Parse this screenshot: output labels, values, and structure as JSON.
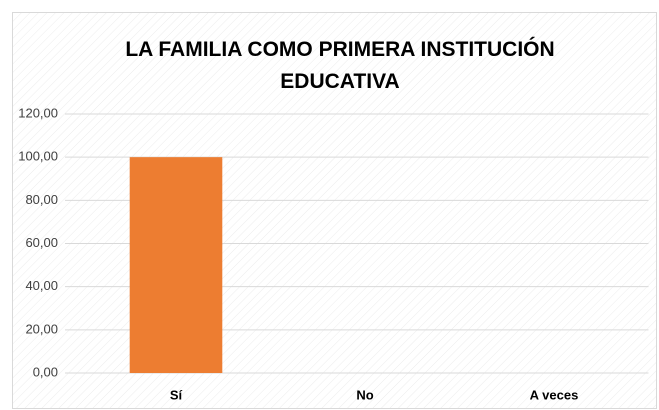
{
  "chart_data": {
    "type": "bar",
    "title": "LA FAMILIA COMO PRIMERA INSTITUCIÓN EDUCATIVA",
    "categories": [
      "Sí",
      "No",
      "A veces"
    ],
    "values": [
      100,
      0,
      0
    ],
    "color": "#ed7d31",
    "ylim": [
      0,
      120
    ],
    "yticks": [
      {
        "value": 0,
        "label": "0,00"
      },
      {
        "value": 20,
        "label": "20,00"
      },
      {
        "value": 40,
        "label": "40,00"
      },
      {
        "value": 60,
        "label": "60,00"
      },
      {
        "value": 80,
        "label": "80,00"
      },
      {
        "value": 100,
        "label": "100,00"
      },
      {
        "value": 120,
        "label": "120,00"
      }
    ],
    "grid": true
  }
}
